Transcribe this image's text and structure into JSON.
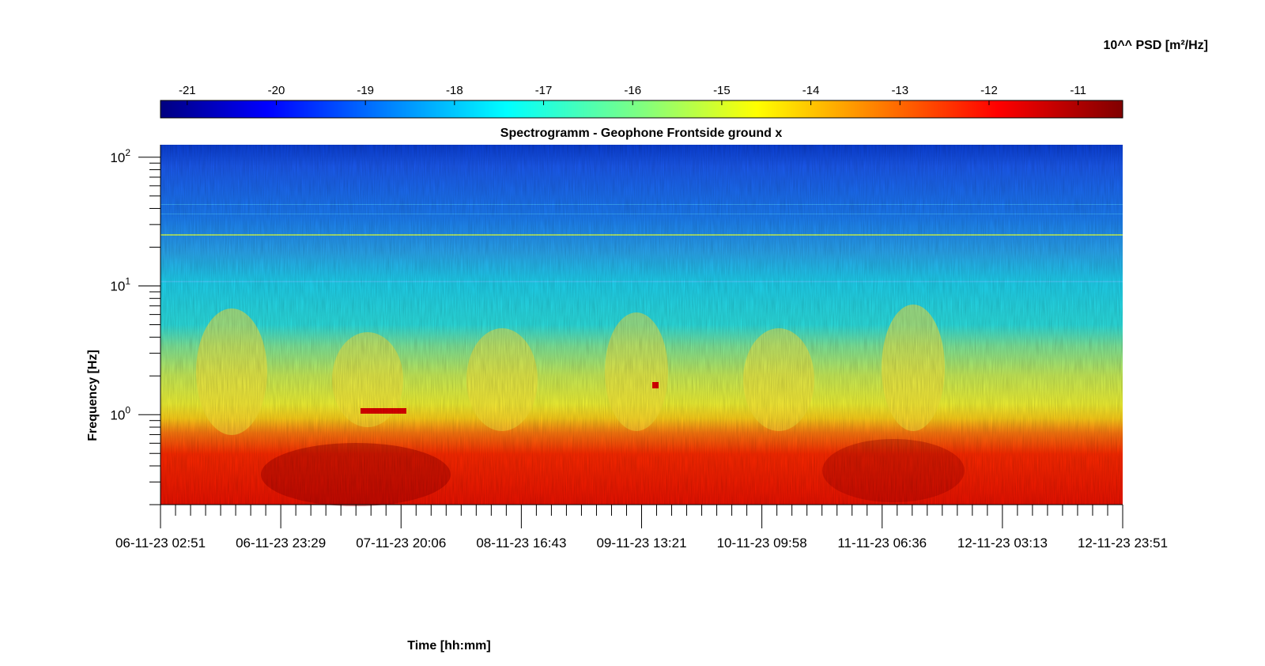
{
  "chart_data": {
    "type": "heatmap",
    "title": "Spectrogramm - Geophone Frontside ground x",
    "xlabel": "Time [hh:mm]",
    "ylabel": "Frequency [Hz]",
    "colorbar_label": "10^^ PSD [m²/Hz]",
    "colormap": "jet",
    "color_range": [
      -21.3,
      -10.5
    ],
    "colorbar_ticks": [
      "-21",
      "-20",
      "-19",
      "-18",
      "-17",
      "-16",
      "-15",
      "-14",
      "-13",
      "-12",
      "-11"
    ],
    "x_ticks": [
      "06-11-23 02:51",
      "06-11-23 23:29",
      "07-11-23 20:06",
      "08-11-23 16:43",
      "09-11-23 13:21",
      "10-11-23 09:58",
      "11-11-23 06:36",
      "12-11-23 03:13",
      "12-11-23 23:51"
    ],
    "y_scale": "log",
    "y_range": [
      0.2,
      125
    ],
    "y_ticks": [
      {
        "base": "10",
        "exp": "2",
        "value": 100
      },
      {
        "base": "10",
        "exp": "1",
        "value": 10
      },
      {
        "base": "10",
        "exp": "0",
        "value": 1
      }
    ],
    "bands": [
      {
        "freq_range": [
          20,
          125
        ],
        "log_psd": -19.8,
        "color": "blue"
      },
      {
        "freq_range": [
          10,
          20
        ],
        "log_psd": -18.5,
        "color": "light-blue"
      },
      {
        "freq_range": [
          3,
          10
        ],
        "log_psd": -17.3,
        "color": "cyan"
      },
      {
        "freq_range": [
          1,
          3
        ],
        "log_psd": -16.5,
        "color": "green-yellow"
      },
      {
        "freq_range": [
          0.7,
          1
        ],
        "log_psd": -15.0,
        "color": "yellow"
      },
      {
        "freq_range": [
          0.2,
          0.7
        ],
        "log_psd": -12.2,
        "color": "red"
      }
    ]
  }
}
